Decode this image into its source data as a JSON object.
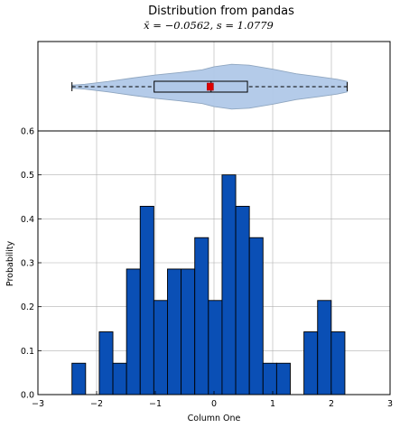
{
  "chart_data": [
    {
      "type": "violin",
      "title": "Distribution from pandas",
      "subtitle": "x̄ = −0.0562, s = 1.0779",
      "x": {
        "min": -2.42,
        "q1": -1.02,
        "median": -0.05,
        "q3": 0.57,
        "max": 2.27,
        "mean": -0.0562
      },
      "density_half_width": [
        [
          -2.42,
          0.05
        ],
        [
          -2.2,
          0.08
        ],
        [
          -1.8,
          0.17
        ],
        [
          -1.4,
          0.28
        ],
        [
          -1.0,
          0.38
        ],
        [
          -0.6,
          0.46
        ],
        [
          -0.2,
          0.55
        ],
        [
          0.0,
          0.65
        ],
        [
          0.3,
          0.73
        ],
        [
          0.6,
          0.7
        ],
        [
          1.0,
          0.57
        ],
        [
          1.4,
          0.42
        ],
        [
          1.8,
          0.32
        ],
        [
          2.1,
          0.24
        ],
        [
          2.27,
          0.17
        ]
      ],
      "colors": {
        "fill": "#b0c8e8",
        "edge": "#8fa6c0",
        "mean_marker": "#dd0000"
      },
      "grid": true
    },
    {
      "type": "bar",
      "subtype": "histogram",
      "xlabel": "Column One",
      "ylabel": "Probability",
      "xlim": [
        -3,
        3
      ],
      "ylim": [
        0,
        0.6
      ],
      "xticks": [
        "−3",
        "−2",
        "−1",
        "0",
        "1",
        "2",
        "3"
      ],
      "yticks": [
        "0.0",
        "0.1",
        "0.2",
        "0.3",
        "0.4",
        "0.5",
        "0.6"
      ],
      "bin_width": 0.2325,
      "bins": [
        {
          "x0": -2.42,
          "value": 0.0714
        },
        {
          "x0": -2.1875,
          "value": 0.0
        },
        {
          "x0": -1.955,
          "value": 0.1428
        },
        {
          "x0": -1.7225,
          "value": 0.0714
        },
        {
          "x0": -1.49,
          "value": 0.2857
        },
        {
          "x0": -1.2575,
          "value": 0.4285
        },
        {
          "x0": -1.025,
          "value": 0.2142
        },
        {
          "x0": -0.7925,
          "value": 0.2857
        },
        {
          "x0": -0.56,
          "value": 0.2857
        },
        {
          "x0": -0.3275,
          "value": 0.3571
        },
        {
          "x0": -0.095,
          "value": 0.2142
        },
        {
          "x0": 0.1375,
          "value": 0.5
        },
        {
          "x0": 0.37,
          "value": 0.4285
        },
        {
          "x0": 0.6025,
          "value": 0.3571
        },
        {
          "x0": 0.835,
          "value": 0.0714
        },
        {
          "x0": 1.0675,
          "value": 0.0714
        },
        {
          "x0": 1.3,
          "value": 0.0
        },
        {
          "x0": 1.5325,
          "value": 0.1428
        },
        {
          "x0": 1.765,
          "value": 0.2142
        },
        {
          "x0": 1.9975,
          "value": 0.1428
        }
      ],
      "colors": {
        "bar": "#0a4fb5",
        "edge": "#000000",
        "grid": "#b0b0b0"
      },
      "grid": true
    }
  ]
}
